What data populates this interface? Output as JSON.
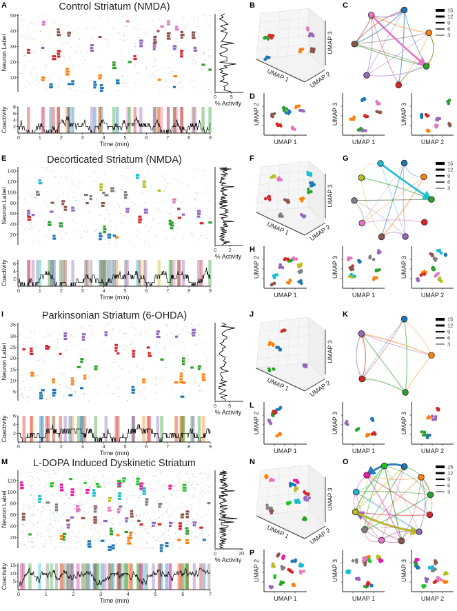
{
  "chart_data": [
    {
      "type": "raster",
      "letter": "A",
      "title": "Control Striatum (NMDA)",
      "ylabel": "Neuron Label",
      "xlabel": "Time (min)",
      "ylim": [
        1,
        51
      ],
      "yticks": [
        "10",
        "20",
        "30",
        "40",
        "50"
      ],
      "xlim": [
        0,
        9
      ],
      "xticks": [
        "0",
        "1",
        "2",
        "3",
        "4",
        "5",
        "6",
        "7",
        "8",
        "9"
      ],
      "activity": {
        "xlabel": "% Activity",
        "xlim": [
          0,
          8
        ],
        "xticks": [
          "0",
          "5"
        ]
      },
      "coactivity": {
        "ylabel": "Coactivity",
        "ylim": [
          0,
          8
        ],
        "yticks": [
          "2",
          "4",
          "6",
          "8"
        ]
      },
      "cluster_colors": [
        "#1f77b4",
        "#ff7f0e",
        "#2ca02c",
        "#d62728",
        "#9467bd",
        "#8c564b",
        "#e377c2"
      ],
      "umap3d": {
        "letter": "B",
        "axes": [
          "UMAP 1",
          "UMAP 2",
          "UMAP 3"
        ]
      },
      "network": {
        "letter": "C",
        "legend": [
          "15",
          "12",
          "9",
          "6",
          "3"
        ]
      },
      "umap2d": {
        "letter": "D",
        "plots": [
          {
            "x": "UMAP 1",
            "y": "UMAP 2"
          },
          {
            "x": "UMAP 1",
            "y": "UMAP 3"
          },
          {
            "x": "UMAP 2",
            "y": "UMAP 3"
          }
        ]
      }
    },
    {
      "type": "raster",
      "letter": "E",
      "title": "Decorticated Striatum (NMDA)",
      "ylabel": "Neuron Label",
      "xlabel": "Time (min)",
      "ylim": [
        1,
        148
      ],
      "yticks": [
        "20",
        "40",
        "60",
        "80",
        "100",
        "120",
        "140"
      ],
      "xlim": [
        0,
        9
      ],
      "xticks": [
        "0",
        "1",
        "2",
        "3",
        "4",
        "5",
        "6",
        "7",
        "8",
        "9"
      ],
      "activity": {
        "xlabel": "% Activity",
        "xlim": [
          0,
          3.5
        ],
        "xticks": [
          "0",
          "2"
        ]
      },
      "coactivity": {
        "ylabel": "Coactivity",
        "ylim": [
          0,
          7
        ],
        "yticks": [
          "2",
          "4",
          "6"
        ]
      },
      "cluster_colors": [
        "#1f77b4",
        "#ff7f0e",
        "#2ca02c",
        "#d62728",
        "#9467bd",
        "#8c564b",
        "#e377c2",
        "#7f7f7f",
        "#bcbd22",
        "#17becf"
      ],
      "umap3d": {
        "letter": "F",
        "axes": [
          "UMAP 1",
          "UMAP 2",
          "UMAP 3"
        ]
      },
      "network": {
        "letter": "G",
        "legend": [
          "15",
          "12",
          "9",
          "6",
          "3"
        ]
      },
      "umap2d": {
        "letter": "H",
        "plots": [
          {
            "x": "UMAP 1",
            "y": "UMAP 2"
          },
          {
            "x": "UMAP 1",
            "y": "UMAP 3"
          },
          {
            "x": "UMAP 2",
            "y": "UMAP 3"
          }
        ]
      }
    },
    {
      "type": "raster",
      "letter": "I",
      "title": "Parkinsonian Striatum (6-OHDA)",
      "ylabel": "Neuron Label",
      "xlabel": "Time (min)",
      "ylim": [
        1,
        36
      ],
      "yticks": [
        "5",
        "10",
        "15",
        "20",
        "25",
        "30",
        "35"
      ],
      "xlim": [
        0,
        9
      ],
      "xticks": [
        "0",
        "1",
        "2",
        "3",
        "4",
        "5",
        "6",
        "7",
        "8",
        "9"
      ],
      "activity": {
        "xlabel": "% Activity",
        "xlim": [
          0,
          9
        ],
        "xticks": [
          "0",
          "5"
        ]
      },
      "coactivity": {
        "ylabel": "Coactivity",
        "ylim": [
          0,
          6
        ],
        "yticks": [
          "2",
          "4",
          "6"
        ]
      },
      "cluster_colors": [
        "#1f77b4",
        "#ff7f0e",
        "#2ca02c",
        "#d62728",
        "#9467bd"
      ],
      "umap3d": {
        "letter": "J",
        "axes": [
          "UMAP 1",
          "UMAP 2",
          "UMAP 3"
        ]
      },
      "network": {
        "letter": "K",
        "legend": [
          "15",
          "12",
          "9",
          "6",
          "3"
        ]
      },
      "umap2d": {
        "letter": "L",
        "plots": [
          {
            "x": "UMAP 1",
            "y": "UMAP 2"
          },
          {
            "x": "UMAP 1",
            "y": "UMAP 3"
          },
          {
            "x": "UMAP 2",
            "y": "UMAP 3"
          }
        ]
      }
    },
    {
      "type": "raster",
      "letter": "M",
      "title": "L-DOPA Induced Dyskinetic Striatum",
      "ylabel": "Neuron Label",
      "xlabel": "Time (min)",
      "ylim": [
        1,
        138
      ],
      "yticks": [
        "20",
        "40",
        "60",
        "80",
        "100",
        "120"
      ],
      "xlim": [
        0,
        7
      ],
      "xticks": [
        "0",
        "1",
        "2",
        "3",
        "4",
        "5",
        "6",
        "7"
      ],
      "activity": {
        "xlabel": "% Activity",
        "xlim": [
          0,
          20
        ],
        "xticks": [
          "0",
          "20"
        ]
      },
      "coactivity": {
        "ylabel": "Coactivity",
        "ylim": [
          0,
          16
        ],
        "yticks": [
          "5",
          "10",
          "15"
        ]
      },
      "cluster_colors": [
        "#1f77b4",
        "#ff7f0e",
        "#2ca02c",
        "#d62728",
        "#9467bd",
        "#8c564b",
        "#e377c2",
        "#7f7f7f",
        "#bcbd22",
        "#17becf",
        "#e81aa8",
        "#22c22a"
      ],
      "umap3d": {
        "letter": "N",
        "axes": [
          "UMAP 1",
          "UMAP 2",
          "UMAP 3"
        ]
      },
      "network": {
        "letter": "O",
        "legend": [
          "15",
          "12",
          "9",
          "6",
          "3"
        ]
      },
      "umap2d": {
        "letter": "P",
        "plots": [
          {
            "x": "UMAP 1",
            "y": "UMAP 2"
          },
          {
            "x": "UMAP 1",
            "y": "UMAP 3"
          },
          {
            "x": "UMAP 2",
            "y": "UMAP 3"
          }
        ]
      }
    }
  ]
}
